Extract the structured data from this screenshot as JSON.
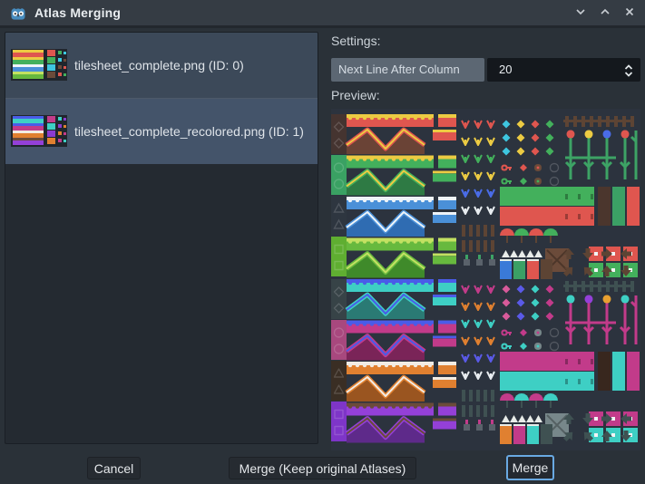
{
  "window": {
    "title": "Atlas Merging",
    "controls": [
      {
        "name": "collapse"
      },
      {
        "name": "expand"
      },
      {
        "name": "close"
      }
    ]
  },
  "atlas_list": {
    "items": [
      {
        "label": "tilesheet_complete.png (ID: 0)",
        "selected": true,
        "thumb": {
          "bg": "#20262d",
          "rows": [
            {
              "edge": "#eccb43",
              "body": "#df564f"
            },
            {
              "edge": "#eccb43",
              "body": "#43b05c"
            },
            {
              "edge": "#eef4f8",
              "body": "#4a90d8"
            },
            {
              "edge": "#c3e162",
              "body": "#67b93e"
            }
          ],
          "accents": [
            "#df564f",
            "#43b05c",
            "#3ec6e0",
            "#6b4b3a"
          ]
        }
      },
      {
        "label": "tilesheet_complete_recolored.png (ID: 1)",
        "selected": true,
        "thumb": {
          "bg": "#20262d",
          "rows": [
            {
              "edge": "#4a5ce8",
              "body": "#3ecfc4"
            },
            {
              "edge": "#4a5ce8",
              "body": "#c23b8a"
            },
            {
              "edge": "#f2ece4",
              "body": "#e08030"
            },
            {
              "edge": "#6b4b3a",
              "body": "#9440d8"
            }
          ],
          "accents": [
            "#c23b8a",
            "#3ecfc4",
            "#8b3bd0",
            "#e08030"
          ]
        }
      }
    ]
  },
  "settings": {
    "section_label": "Settings:",
    "property_label": "Next Line After Column",
    "value": "20"
  },
  "preview": {
    "section_label": "Preview:"
  },
  "footer": {
    "cancel_label": "Cancel",
    "merge_keep_label": "Merge (Keep original Atlases)",
    "merge_label": "Merge"
  },
  "colors": {
    "accent": "#69a9e2",
    "titlebar": "#353c44",
    "dialog_bg": "#2a3138",
    "panel_bg": "#242a31",
    "selection": "#44546a",
    "chip_bg": "#5c6773",
    "spin_bg": "#14181d"
  },
  "preview_image": {
    "bg": "#2c333e",
    "halves": [
      {
        "left_blocks": [
          "#453430",
          "#3aa163",
          "#2e3640",
          "#5fae31"
        ],
        "terrain": [
          {
            "edge": "#eccb43",
            "body": "#df564f",
            "dark": "#6a4336"
          },
          {
            "edge": "#eccb43",
            "body": "#43b05c",
            "dark": "#2e7a44"
          },
          {
            "edge": "#eef4f8",
            "body": "#4a90d8",
            "dark": "#2f6cb2"
          },
          {
            "edge": "#c3e162",
            "body": "#67b93e",
            "dark": "#3f8a2a"
          }
        ],
        "sprout_colors": [
          "#df564f",
          "#eccb43",
          "#43b05c",
          "#eccb43",
          "#4a6ce8",
          "#e8ecf0"
        ],
        "gem_colors": [
          "#3ec6e0",
          "#eccb43",
          "#df564f",
          "#43b05c"
        ],
        "key_colors": [
          "#df564f",
          "#43b05c"
        ],
        "fence_color": "#5d4434",
        "stem_color": "#3da365",
        "bloom_colors": [
          "#df564f",
          "#eccb43",
          "#4a6ce8"
        ],
        "strip_colors": [
          "#43b05c",
          "#df564f"
        ],
        "bar_colors": [
          "#4b362d",
          "#3ba065",
          "#df564f"
        ],
        "cap_colors": [
          "#df564f",
          "#43b05c"
        ],
        "keycap_colors": [
          "#df564f",
          "#43b05c"
        ],
        "crate_color": "#6b4b3a",
        "pot_color": "#5a626b",
        "spike_color": "#e8ece9",
        "liquid_colors": [
          "#3a7ad8",
          "#3ba065",
          "#df564f"
        ],
        "arrow_color": "#5d4434"
      },
      {
        "left_blocks": [
          "#374347",
          "#a8487e",
          "#3a2e24",
          "#7e35c8"
        ],
        "terrain": [
          {
            "edge": "#4a5ce8",
            "body": "#3ecfc4",
            "dark": "#2a7a74"
          },
          {
            "edge": "#4a5ce8",
            "body": "#c23b8a",
            "dark": "#7a2458"
          },
          {
            "edge": "#f2ece4",
            "body": "#e08030",
            "dark": "#9a5520"
          },
          {
            "edge": "#6b4b3a",
            "body": "#9440d8",
            "dark": "#5e2a8a"
          }
        ],
        "sprout_colors": [
          "#c23b8a",
          "#e08030",
          "#3ecfc4",
          "#e08030",
          "#5a5ae8",
          "#e8ecf0"
        ],
        "gem_colors": [
          "#d85a9a",
          "#5a5ae8",
          "#3ecfc4",
          "#c23b8a"
        ],
        "key_colors": [
          "#c23b8a",
          "#3ecfc4"
        ],
        "fence_color": "#3f5152",
        "stem_color": "#c23b8a",
        "bloom_colors": [
          "#3ecfc4",
          "#9440d8",
          "#e8a030"
        ],
        "strip_colors": [
          "#c23b8a",
          "#3ecfc4"
        ],
        "bar_colors": [
          "#38271e",
          "#3ecfc4",
          "#c23b8a"
        ],
        "cap_colors": [
          "#c23b8a",
          "#3ecfc4"
        ],
        "keycap_colors": [
          "#c23b8a",
          "#3ecfc4"
        ],
        "crate_color": "#77878a",
        "pot_color": "#5a626b",
        "spike_color": "#e8ece9",
        "liquid_colors": [
          "#e08030",
          "#c23b8a",
          "#3ecfc4"
        ],
        "arrow_color": "#3f5152"
      }
    ]
  }
}
